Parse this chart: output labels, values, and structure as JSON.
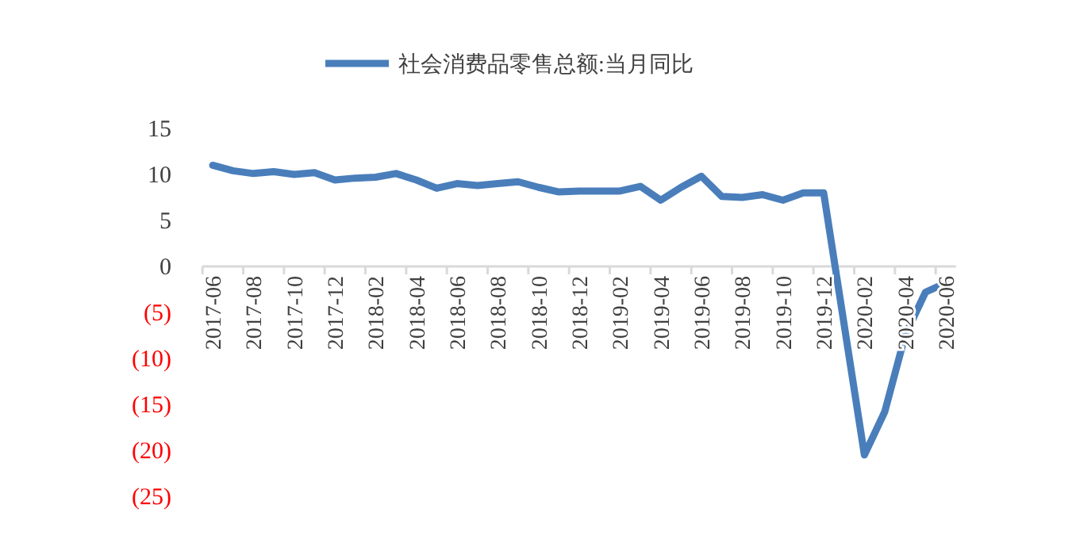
{
  "chart_data": {
    "type": "line",
    "legend": "top",
    "grid": false,
    "marker": "none",
    "line_style": "solid",
    "categories": [
      "2017-06",
      null,
      "2017-08",
      null,
      "2017-10",
      null,
      "2017-12",
      null,
      "2018-02",
      null,
      "2018-04",
      null,
      "2018-06",
      null,
      "2018-08",
      null,
      "2018-10",
      null,
      "2018-12",
      null,
      "2019-02",
      null,
      "2019-04",
      null,
      "2019-06",
      null,
      "2019-08",
      null,
      "2019-10",
      null,
      "2019-12",
      null,
      "2020-02",
      null,
      "2020-04",
      null,
      "2020-06"
    ],
    "series": [
      {
        "name": "社会消费品零售总额:当月同比",
        "color": "#4a7ebb",
        "values": [
          11.0,
          10.4,
          10.1,
          10.3,
          10.0,
          10.2,
          9.4,
          9.6,
          9.7,
          10.1,
          9.4,
          8.5,
          9.0,
          8.8,
          9.0,
          9.2,
          8.6,
          8.1,
          8.2,
          8.2,
          8.2,
          8.7,
          7.2,
          8.6,
          9.8,
          7.6,
          7.5,
          7.8,
          7.2,
          8.0,
          8.0,
          null,
          -20.5,
          -15.8,
          -7.5,
          -2.8,
          -1.8
        ]
      }
    ],
    "ylim": [
      -25,
      15
    ],
    "yticks": [
      {
        "value": -25,
        "label": "(25)"
      },
      {
        "value": -20,
        "label": "(20)"
      },
      {
        "value": -15,
        "label": "(15)"
      },
      {
        "value": -10,
        "label": "(10)"
      },
      {
        "value": -5,
        "label": "(5)"
      },
      0,
      5,
      10,
      15
    ]
  }
}
